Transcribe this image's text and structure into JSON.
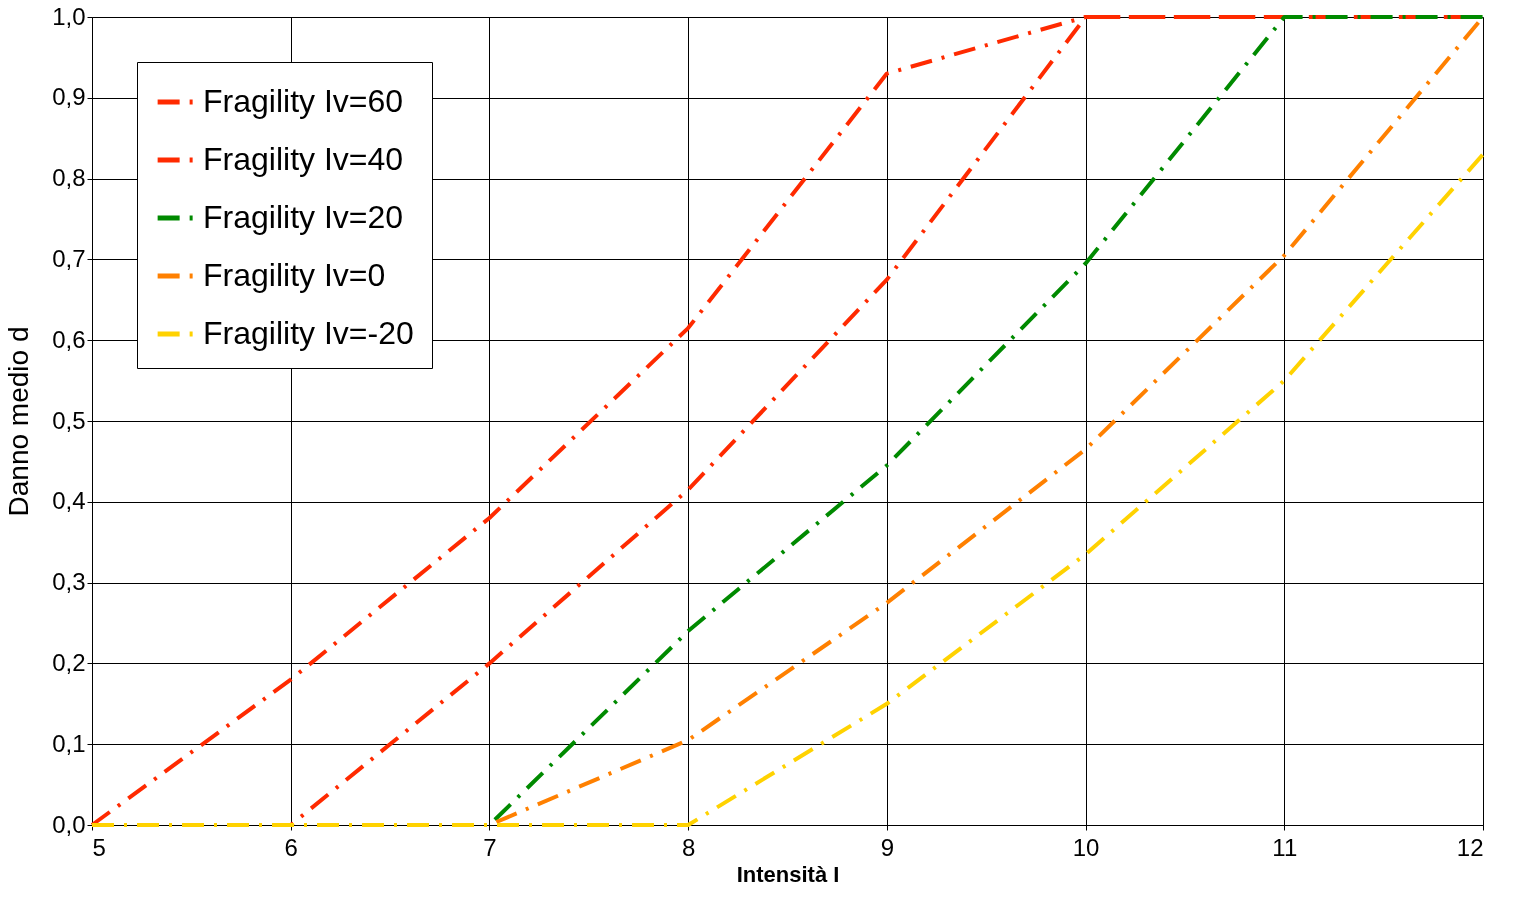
{
  "chart_data": {
    "type": "line",
    "xlabel": "Intensità I",
    "ylabel": "Danno medio d",
    "x": [
      5,
      6,
      7,
      8,
      9,
      10,
      11,
      12
    ],
    "series": [
      {
        "name": "Fragility Iv=60",
        "color": "#ff2a00",
        "values": [
          0,
          0.18,
          0.38,
          0.615,
          0.93,
          1.0,
          1.0,
          1.0
        ]
      },
      {
        "name": "Fragility Iv=40",
        "color": "#ff2a00",
        "values": [
          0,
          0,
          0.2,
          0.415,
          0.675,
          1.0,
          1.0,
          1.0
        ]
      },
      {
        "name": "Fragility Iv=20",
        "color": "#008a00",
        "values": [
          0,
          0,
          0,
          0.24,
          0.445,
          0.695,
          1.0,
          1.0
        ]
      },
      {
        "name": "Fragility Iv=0",
        "color": "#ff8000",
        "values": [
          0,
          0,
          0,
          0.105,
          0.275,
          0.465,
          0.705,
          1.0
        ]
      },
      {
        "name": "Fragility Iv=-20",
        "color": "#ffd200",
        "values": [
          0,
          0,
          0,
          0,
          0.15,
          0.335,
          0.55,
          0.83
        ]
      }
    ],
    "xlim": [
      5,
      12
    ],
    "xticks": [
      5,
      6,
      7,
      8,
      9,
      10,
      11,
      12
    ],
    "ylim": [
      0,
      1.0
    ],
    "yticks": [
      {
        "value": 0,
        "label": "0,0"
      },
      {
        "value": 0.1,
        "label": "0,1"
      },
      {
        "value": 0.2,
        "label": "0,2"
      },
      {
        "value": 0.3,
        "label": "0,3"
      },
      {
        "value": 0.4,
        "label": "0,4"
      },
      {
        "value": 0.5,
        "label": "0,5"
      },
      {
        "value": 0.6,
        "label": "0,6"
      },
      {
        "value": 0.7,
        "label": "0,7"
      },
      {
        "value": 0.8,
        "label": "0,8"
      },
      {
        "value": 0.9,
        "label": "0,9"
      },
      {
        "value": 1.0,
        "label": "1,0"
      }
    ],
    "grid": true,
    "legend": "top left",
    "marker": "none",
    "line_style": "dashed"
  }
}
